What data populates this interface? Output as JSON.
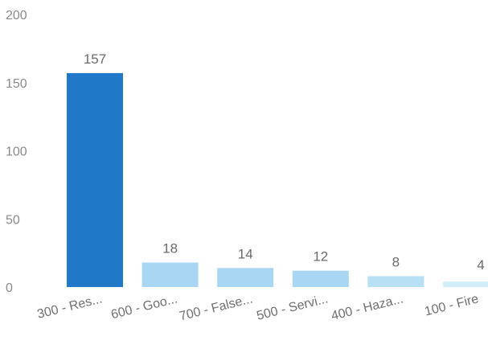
{
  "chart_data": {
    "type": "bar",
    "categories": [
      "300 - Res...",
      "600 - Goo...",
      "700 - False...",
      "500 - Servi...",
      "400 - Haza...",
      "100 - Fire"
    ],
    "values": [
      157,
      18,
      14,
      12,
      8,
      4
    ],
    "data_labels": [
      "157",
      "18",
      "14",
      "12",
      "8",
      "4"
    ],
    "ylim": [
      0,
      200
    ],
    "yticks": [
      0,
      50,
      100,
      150,
      200
    ],
    "grid": false,
    "legend": "none",
    "colors": [
      "#1f78c8",
      "#a9d6f2",
      "#a9d6f2",
      "#a9d6f2",
      "#b7e0f4",
      "#cfeef9"
    ]
  }
}
